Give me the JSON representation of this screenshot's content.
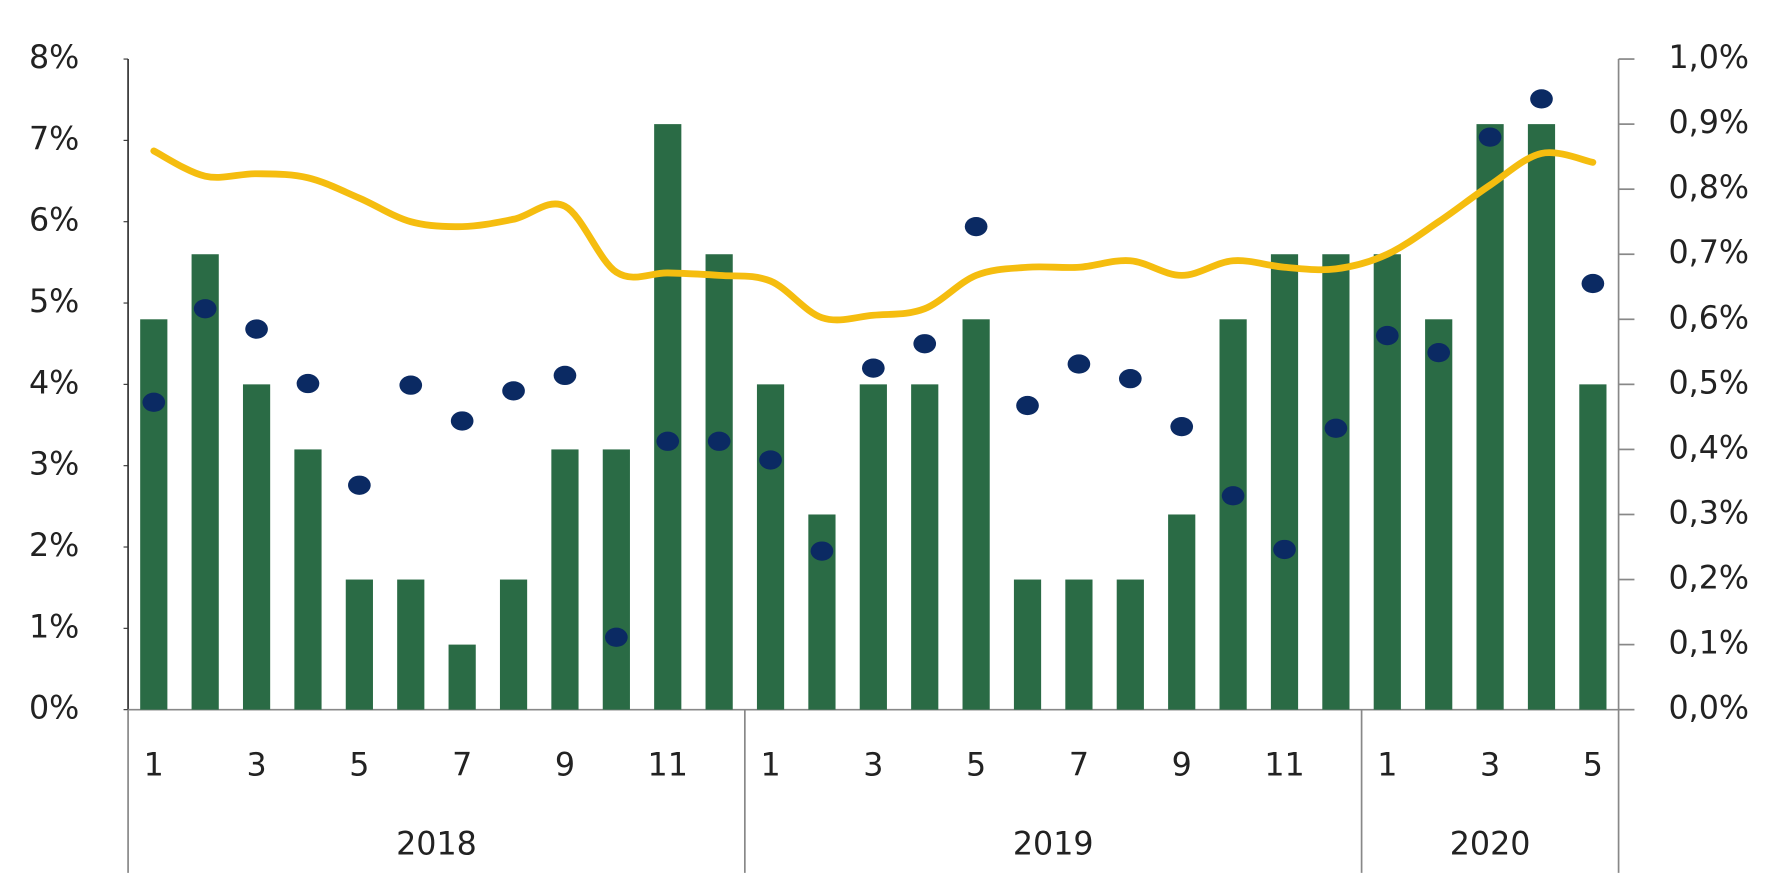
{
  "chart_data": {
    "type": "combo",
    "categories": [
      "1",
      null,
      "3",
      null,
      "5",
      null,
      "7",
      null,
      "9",
      null,
      "11",
      null,
      "1",
      null,
      "3",
      null,
      "5",
      null,
      "7",
      null,
      "9",
      null,
      "11",
      null,
      "1",
      null,
      "3",
      null,
      "5"
    ],
    "groups": [
      {
        "label": "2018",
        "span": 12
      },
      {
        "label": "2019",
        "span": 12
      },
      {
        "label": "2020",
        "span": 5
      }
    ],
    "series": [
      {
        "type": "bar",
        "axis": "y2",
        "color": "#2a6b45",
        "values": [
          0.6,
          0.7,
          0.5,
          0.4,
          0.2,
          0.2,
          0.1,
          0.2,
          0.4,
          0.4,
          0.9,
          0.7,
          0.5,
          0.3,
          0.5,
          0.5,
          0.6,
          0.2,
          0.2,
          0.2,
          0.3,
          0.6,
          0.7,
          0.7,
          0.7,
          0.6,
          0.9,
          0.9,
          0.5
        ]
      },
      {
        "type": "scatter",
        "color": "#0b2a63",
        "values": [
          3.78,
          4.93,
          4.68,
          4.01,
          2.76,
          3.99,
          3.55,
          3.92,
          4.11,
          0.89,
          3.3,
          3.3,
          3.07,
          1.95,
          4.2,
          4.5,
          5.94,
          3.74,
          4.25,
          4.07,
          3.48,
          2.63,
          1.97,
          3.46,
          4.6,
          4.39,
          7.04,
          7.51,
          5.24
        ]
      },
      {
        "type": "line",
        "color": "#f5bd0f",
        "values": [
          6.87,
          6.56,
          6.59,
          6.54,
          6.29,
          6.0,
          5.94,
          6.03,
          6.19,
          5.38,
          5.37,
          5.34,
          5.27,
          4.82,
          4.85,
          4.93,
          5.34,
          5.44,
          5.44,
          5.52,
          5.34,
          5.52,
          5.44,
          5.42,
          5.6,
          6.0,
          6.45,
          6.84,
          6.73
        ]
      }
    ],
    "ylim": [
      0,
      8
    ],
    "yticks": [
      {
        "value": 0,
        "label": "0%"
      },
      {
        "value": 1,
        "label": "1%"
      },
      {
        "value": 2,
        "label": "2%"
      },
      {
        "value": 3,
        "label": "3%"
      },
      {
        "value": 4,
        "label": "4%"
      },
      {
        "value": 5,
        "label": "5%"
      },
      {
        "value": 6,
        "label": "6%"
      },
      {
        "value": 7,
        "label": "7%"
      },
      {
        "value": 8,
        "label": "8%"
      }
    ],
    "y2lim": [
      0,
      1
    ],
    "y2ticks": [
      {
        "value": 0,
        "label": "0,0%"
      },
      {
        "value": 0.1,
        "label": "0,1%"
      },
      {
        "value": 0.2,
        "label": "0,2%"
      },
      {
        "value": 0.3,
        "label": "0,3%"
      },
      {
        "value": 0.4,
        "label": "0,4%"
      },
      {
        "value": 0.5,
        "label": "0,5%"
      },
      {
        "value": 0.6,
        "label": "0,6%"
      },
      {
        "value": 0.7,
        "label": "0,7%"
      },
      {
        "value": 0.8,
        "label": "0,8%"
      },
      {
        "value": 0.9,
        "label": "0,9%"
      },
      {
        "value": 1,
        "label": "1,0%"
      }
    ],
    "grid": false
  }
}
